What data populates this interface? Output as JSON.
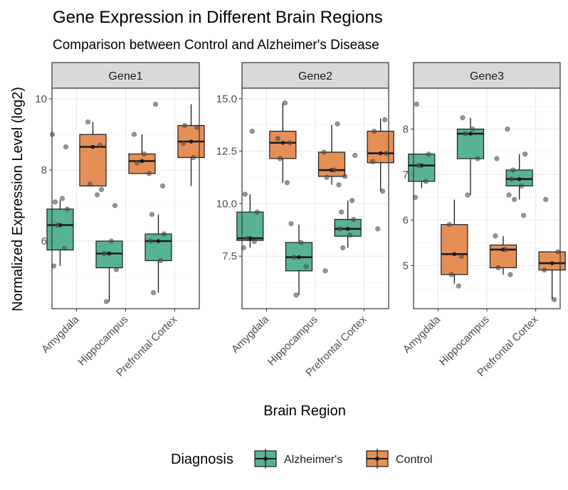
{
  "chart_data": {
    "type": "box",
    "title": "Gene Expression in Different Brain Regions",
    "subtitle": "Comparison between Control and Alzheimer's Disease",
    "xlabel": "Brain Region",
    "ylabel": "Normalized Expression Level (log2)",
    "categories": [
      "Amygdala",
      "Hippocampus",
      "Prefrontal Cortex"
    ],
    "legend": {
      "title": "Diagnosis",
      "position": "bottom",
      "entries": [
        {
          "name": "Alzheimer's",
          "color": "#3BA484"
        },
        {
          "name": "Control",
          "color": "#E07B39"
        }
      ]
    },
    "grid": true,
    "facets": [
      {
        "label": "Gene1",
        "ylim": [
          4.1,
          10.3
        ],
        "yticks": [
          6,
          8,
          10
        ],
        "groups": [
          {
            "category": "Amygdala",
            "series": "Alzheimer's",
            "min": 5.3,
            "q1": 5.75,
            "median": 6.45,
            "q3": 6.9,
            "max": 7.15,
            "points": [
              5.3,
              5.8,
              6.45,
              6.9,
              7.1,
              7.2,
              9.0,
              8.65
            ]
          },
          {
            "category": "Amygdala",
            "series": "Control",
            "min": 7.55,
            "q1": 7.55,
            "median": 8.65,
            "q3": 9.0,
            "max": 9.35,
            "points": [
              7.3,
              7.6,
              8.7,
              9.35
            ]
          },
          {
            "category": "Hippocampus",
            "series": "Alzheimer's",
            "min": 4.3,
            "q1": 5.25,
            "median": 5.65,
            "q3": 6.0,
            "max": 6.0,
            "points": [
              4.3,
              5.2,
              5.65,
              6.0,
              7.45,
              7.0
            ]
          },
          {
            "category": "Hippocampus",
            "series": "Control",
            "min": 7.9,
            "q1": 7.9,
            "median": 8.25,
            "q3": 8.45,
            "max": 9.0,
            "points": [
              7.9,
              8.2,
              8.45,
              9.0
            ]
          },
          {
            "category": "Prefrontal Cortex",
            "series": "Alzheimer's",
            "min": 4.55,
            "q1": 5.45,
            "median": 6.0,
            "q3": 6.2,
            "max": 6.75,
            "points": [
              4.55,
              5.45,
              6.0,
              6.2,
              6.75,
              7.55,
              9.85
            ]
          },
          {
            "category": "Prefrontal Cortex",
            "series": "Control",
            "min": 7.55,
            "q1": 8.35,
            "median": 8.8,
            "q3": 9.25,
            "max": 9.85,
            "points": [
              8.35,
              8.75,
              9.2,
              9.25
            ]
          }
        ]
      },
      {
        "label": "Gene2",
        "ylim": [
          5.0,
          15.5
        ],
        "yticks": [
          7.5,
          10.0,
          12.5,
          15.0
        ],
        "groups": [
          {
            "category": "Amygdala",
            "series": "Alzheimer's",
            "min": 7.9,
            "q1": 8.25,
            "median": 8.35,
            "q3": 9.6,
            "max": 10.45,
            "points": [
              7.9,
              8.2,
              8.35,
              9.6,
              10.45,
              13.45
            ]
          },
          {
            "category": "Amygdala",
            "series": "Control",
            "min": 11.0,
            "q1": 12.15,
            "median": 12.9,
            "q3": 13.45,
            "max": 14.8,
            "points": [
              11.0,
              12.15,
              12.9,
              13.1,
              14.8
            ]
          },
          {
            "category": "Hippocampus",
            "series": "Alzheimer's",
            "min": 5.65,
            "q1": 6.8,
            "median": 7.45,
            "q3": 8.15,
            "max": 9.0,
            "points": [
              5.65,
              7.0,
              7.45,
              8.15,
              9.05
            ]
          },
          {
            "category": "Hippocampus",
            "series": "Control",
            "min": 10.9,
            "q1": 11.3,
            "median": 11.6,
            "q3": 12.45,
            "max": 13.75,
            "points": [
              10.9,
              11.25,
              11.6,
              12.45,
              13.8,
              6.8
            ]
          },
          {
            "category": "Prefrontal Cortex",
            "series": "Alzheimer's",
            "min": 7.9,
            "q1": 8.45,
            "median": 8.8,
            "q3": 9.25,
            "max": 10.15,
            "points": [
              7.9,
              8.5,
              8.8,
              9.25,
              9.6,
              10.15,
              11.3,
              12.3
            ]
          },
          {
            "category": "Prefrontal Cortex",
            "series": "Control",
            "min": 10.6,
            "q1": 11.95,
            "median": 12.4,
            "q3": 13.45,
            "max": 14.05,
            "points": [
              10.6,
              12.0,
              12.4,
              13.45,
              14.0,
              8.8
            ]
          }
        ]
      },
      {
        "label": "Gene3",
        "ylim": [
          4.05,
          8.9
        ],
        "yticks": [
          5,
          6,
          7,
          8
        ],
        "groups": [
          {
            "category": "Amygdala",
            "series": "Alzheimer's",
            "min": 6.7,
            "q1": 6.85,
            "median": 7.2,
            "q3": 7.45,
            "max": 7.45,
            "points": [
              6.5,
              6.85,
              7.2,
              7.45,
              8.55
            ]
          },
          {
            "category": "Amygdala",
            "series": "Control",
            "min": 4.6,
            "q1": 4.8,
            "median": 5.25,
            "q3": 5.9,
            "max": 6.45,
            "points": [
              4.55,
              4.8,
              5.2,
              5.9
            ]
          },
          {
            "category": "Hippocampus",
            "series": "Alzheimer's",
            "min": 6.55,
            "q1": 7.35,
            "median": 7.9,
            "q3": 8.0,
            "max": 8.25,
            "points": [
              6.55,
              7.35,
              7.9,
              8.0,
              8.25
            ]
          },
          {
            "category": "Hippocampus",
            "series": "Control",
            "min": 4.8,
            "q1": 4.95,
            "median": 5.35,
            "q3": 5.45,
            "max": 5.65,
            "points": [
              4.8,
              4.95,
              5.35,
              5.65,
              6.55,
              7.35,
              8.0
            ]
          },
          {
            "category": "Prefrontal Cortex",
            "series": "Alzheimer's",
            "min": 6.45,
            "q1": 6.75,
            "median": 6.9,
            "q3": 7.1,
            "max": 7.45,
            "points": [
              6.45,
              6.75,
              6.9,
              7.45,
              7.1,
              6.1
            ]
          },
          {
            "category": "Prefrontal Cortex",
            "series": "Control",
            "min": 4.25,
            "q1": 4.9,
            "median": 5.05,
            "q3": 5.3,
            "max": 5.3,
            "points": [
              4.25,
              4.9,
              5.3,
              6.45
            ]
          }
        ]
      }
    ]
  }
}
